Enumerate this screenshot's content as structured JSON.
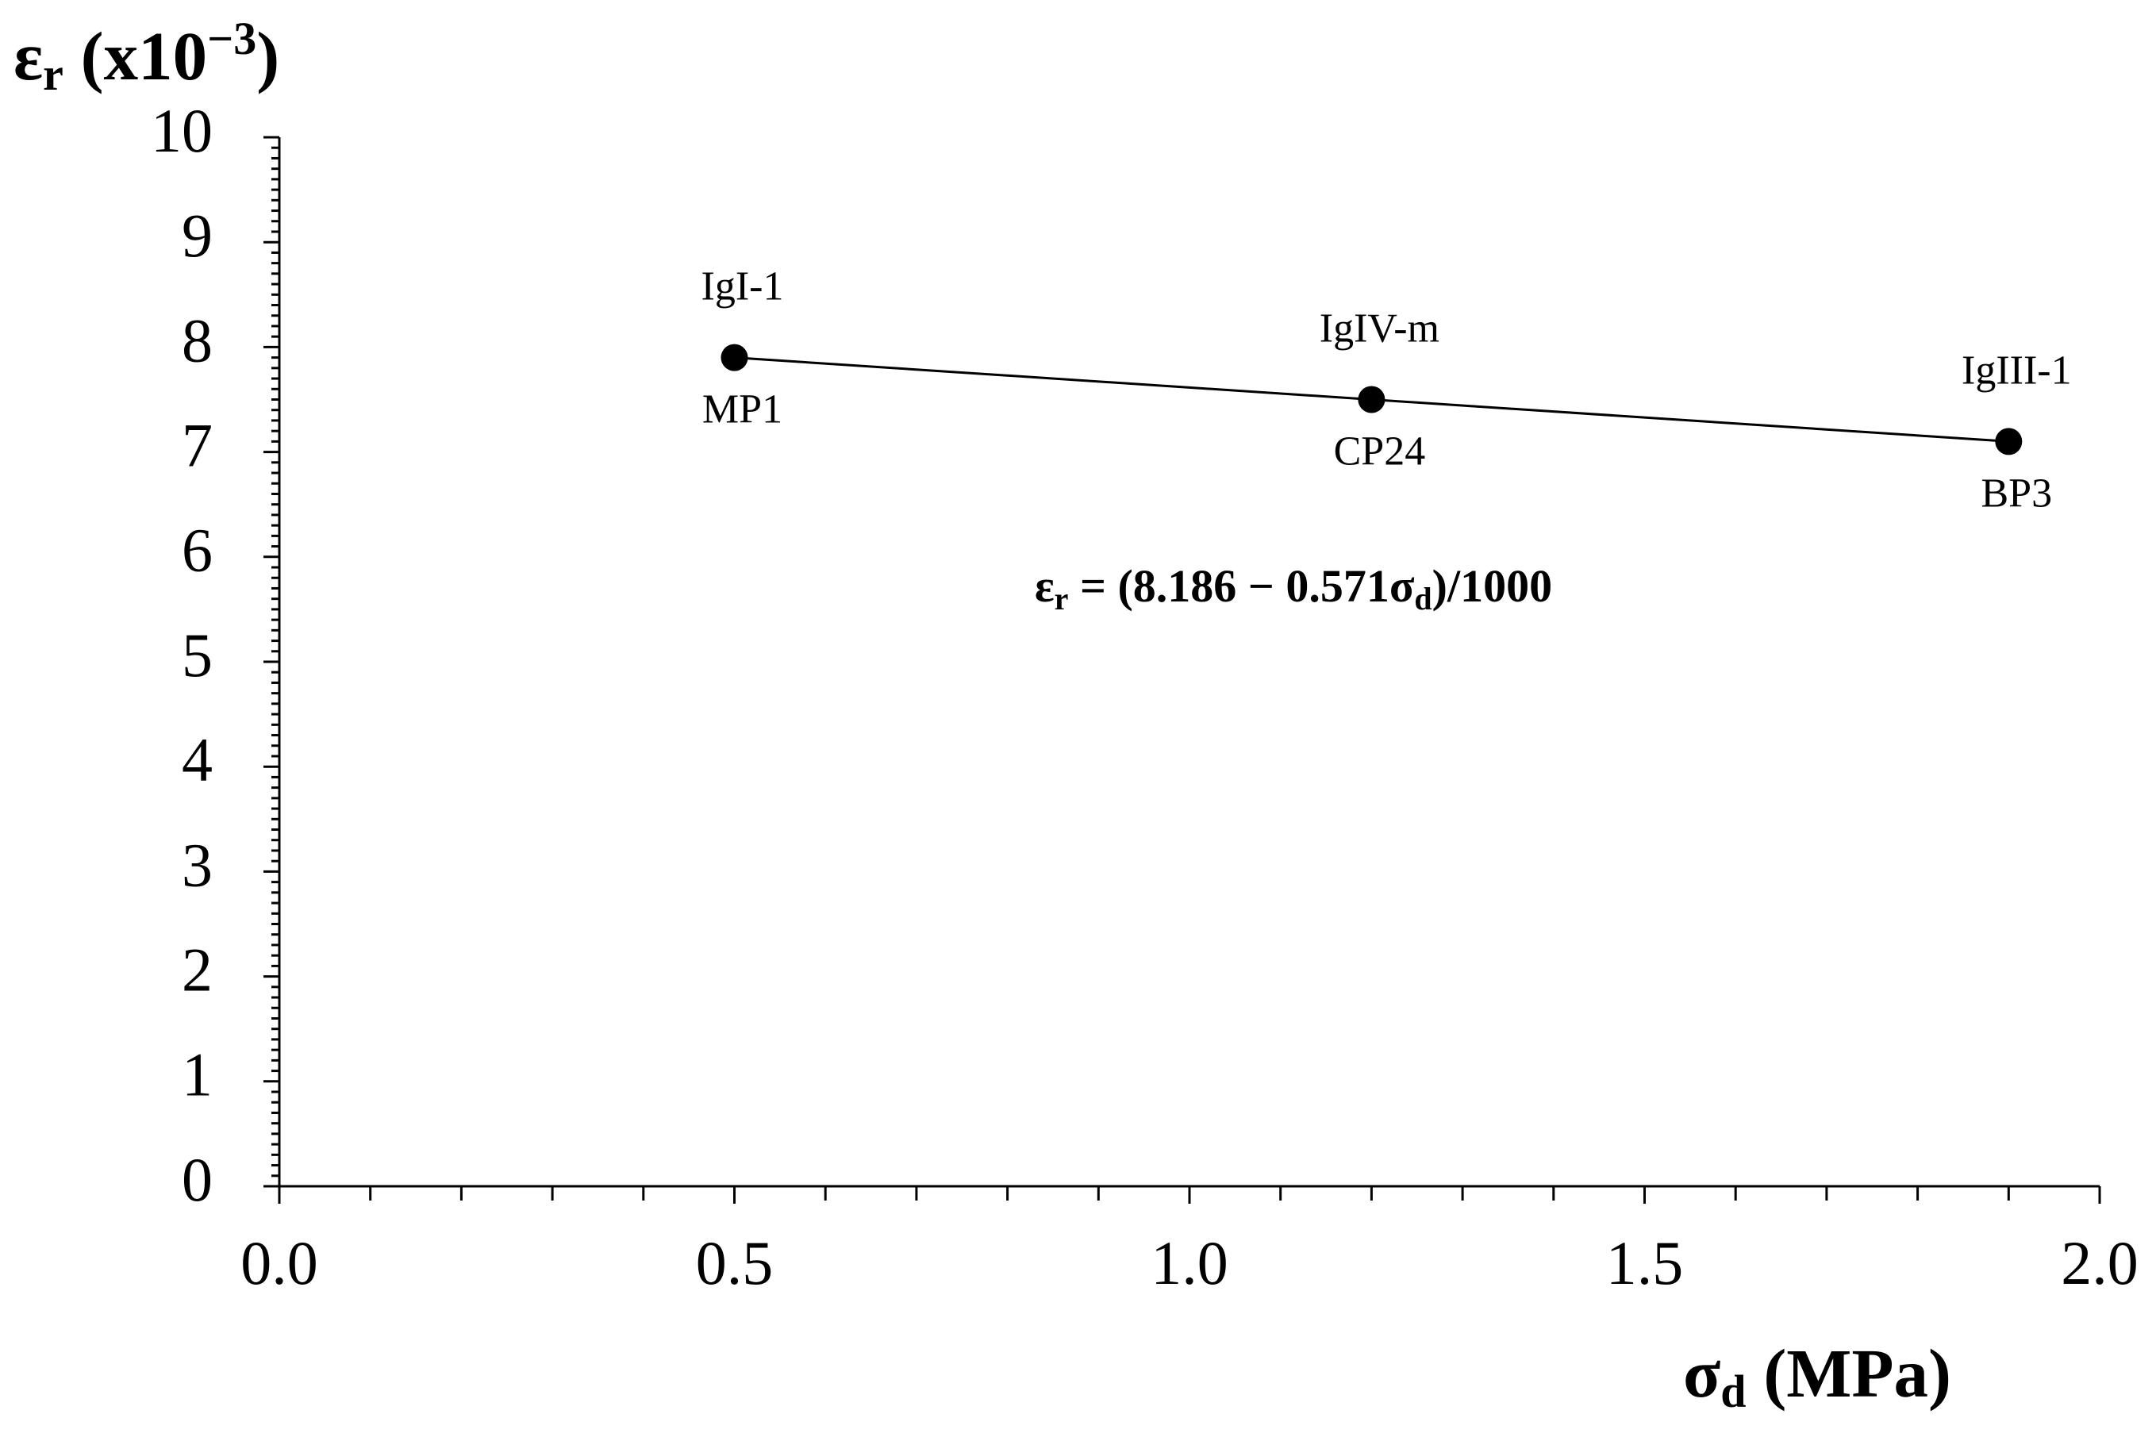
{
  "chart_data": {
    "type": "line",
    "title_parts": [
      "ε",
      "r",
      " (x10",
      "−3",
      ")"
    ],
    "xlabel_parts": [
      "σ",
      "d",
      " (MPa)"
    ],
    "annotation_parts": [
      "ε",
      "r",
      " = (8.186 − 0.571σ",
      "d",
      ")/1000"
    ],
    "x": [
      0.5,
      1.2,
      1.9
    ],
    "series": [
      {
        "color": "#000000",
        "values": [
          7.9,
          7.5,
          7.1
        ],
        "labels_above": [
          "IgI-1",
          "IgIV-m",
          "IgIII-1"
        ],
        "labels_below": [
          "MP1",
          "CP24",
          "BP3"
        ]
      }
    ],
    "xlim": [
      0,
      2
    ],
    "xticks": [
      {
        "value": 0,
        "label": "0.0"
      },
      0.5,
      {
        "value": 1,
        "label": "1.0"
      },
      1.5,
      {
        "value": 2,
        "label": "2.0"
      }
    ],
    "ylim": [
      0,
      10
    ],
    "yticks": [
      0,
      1,
      2,
      3,
      4,
      5,
      6,
      7,
      8,
      9,
      10
    ],
    "grid": false
  }
}
